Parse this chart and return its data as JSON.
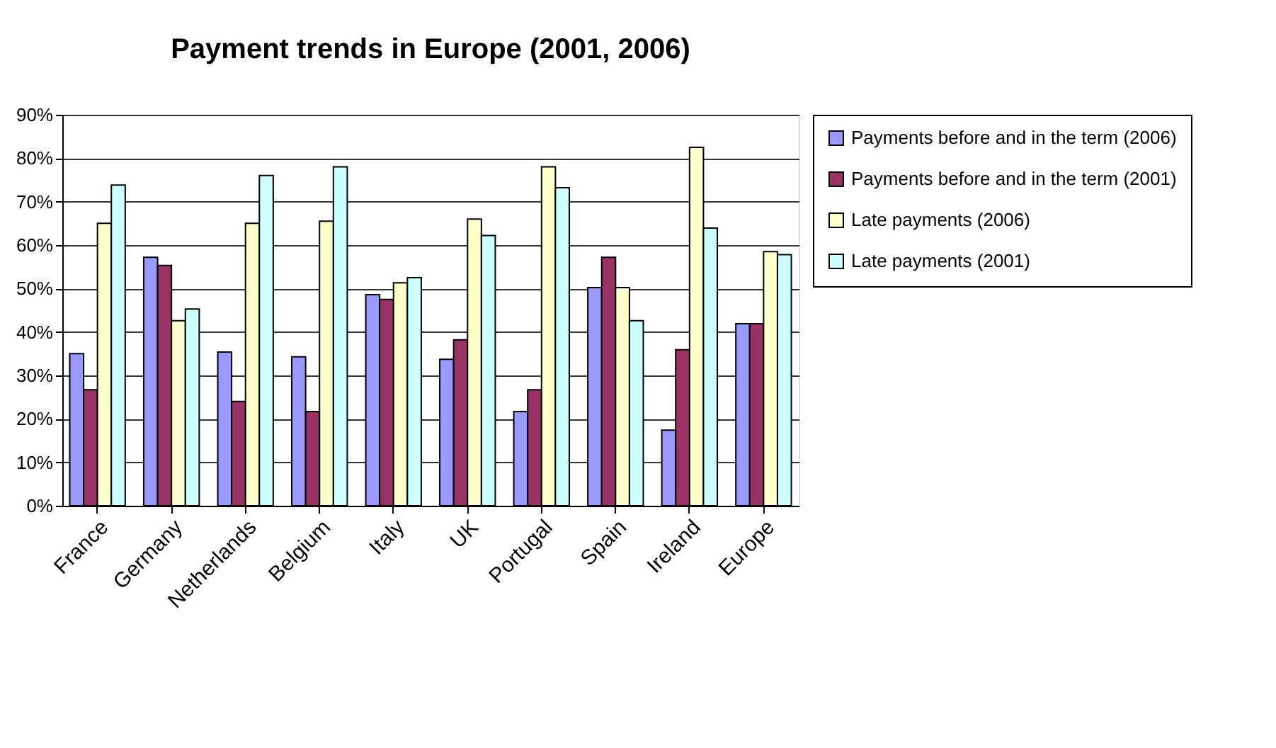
{
  "chart_data": {
    "type": "bar",
    "title": "Payment trends in Europe (2001, 2006)",
    "categories": [
      "France",
      "Germany",
      "Netherlands",
      "Belgium",
      "Italy",
      "UK",
      "Portugal",
      "Spain",
      "Ireland",
      "Europe"
    ],
    "series": [
      {
        "name": "Payments before and in the term (2006)",
        "color": "#9999ff",
        "values": [
          35,
          57.2,
          35.4,
          34.3,
          48.6,
          33.7,
          21.7,
          50.2,
          17.4,
          41.9
        ]
      },
      {
        "name": "Payments before and in the term (2001)",
        "color": "#993366",
        "values": [
          26.7,
          55.3,
          24,
          21.7,
          47.5,
          38.2,
          26.7,
          57.2,
          35.9,
          41.9
        ]
      },
      {
        "name": "Late payments (2006)",
        "color": "#ffffcc",
        "values": [
          65,
          42.6,
          65,
          65.5,
          51.3,
          66,
          78,
          50.2,
          82.5,
          58.5
        ]
      },
      {
        "name": "Late payments (2001)",
        "color": "#ccffff",
        "values": [
          73.8,
          45.3,
          76,
          78,
          52.5,
          62.2,
          73.2,
          42.6,
          63.9,
          57.8
        ]
      }
    ],
    "ylim": [
      0,
      90
    ],
    "yticks": [
      {
        "value": 0,
        "label": "0%"
      },
      {
        "value": 10,
        "label": "10%"
      },
      {
        "value": 20,
        "label": "20%"
      },
      {
        "value": 30,
        "label": "30%"
      },
      {
        "value": 40,
        "label": "40%"
      },
      {
        "value": 50,
        "label": "50%"
      },
      {
        "value": 60,
        "label": "60%"
      },
      {
        "value": 70,
        "label": "70%"
      },
      {
        "value": 80,
        "label": "80%"
      },
      {
        "value": 90,
        "label": "90%"
      }
    ],
    "grid": "y",
    "legend": "right"
  }
}
